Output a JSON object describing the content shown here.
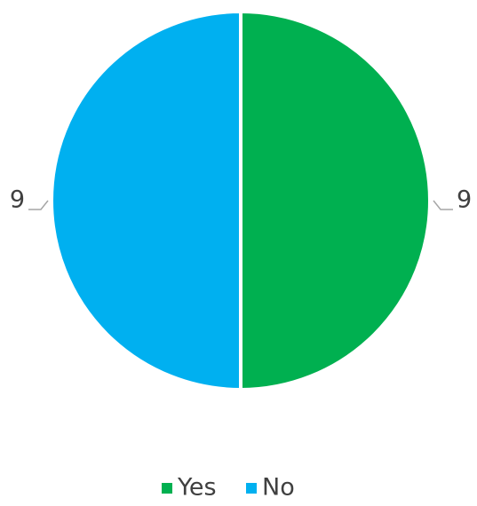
{
  "chart_data": {
    "type": "pie",
    "categories": [
      "Yes",
      "No"
    ],
    "values": [
      9,
      9
    ],
    "colors": [
      "#00b050",
      "#00b0f0"
    ],
    "legend": "bottom"
  }
}
